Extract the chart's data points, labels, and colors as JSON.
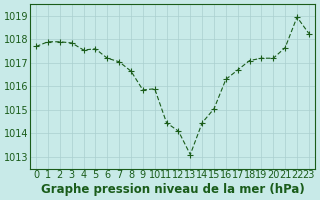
{
  "x": [
    0,
    1,
    2,
    3,
    4,
    5,
    6,
    7,
    8,
    9,
    10,
    11,
    12,
    13,
    14,
    15,
    16,
    17,
    18,
    19,
    20,
    21,
    22,
    23
  ],
  "y": [
    1017.7,
    1017.9,
    1017.9,
    1017.85,
    1017.55,
    1017.6,
    1017.2,
    1017.05,
    1016.65,
    1015.85,
    1015.9,
    1014.45,
    1014.1,
    1013.1,
    1014.45,
    1015.05,
    1016.3,
    1016.7,
    1017.1,
    1017.2,
    1017.2,
    1017.65,
    1018.95,
    1018.25
  ],
  "line_color": "#1a5c1a",
  "marker": "+",
  "marker_size": 5,
  "bg_color": "#c8eae8",
  "grid_color": "#aacfcf",
  "tick_color": "#1a5c1a",
  "label_color": "#1a5c1a",
  "xlabel": "Graphe pression niveau de la mer (hPa)",
  "ylim": [
    1012.5,
    1019.5
  ],
  "yticks": [
    1013,
    1014,
    1015,
    1016,
    1017,
    1018,
    1019
  ],
  "xticks": [
    0,
    1,
    2,
    3,
    4,
    5,
    6,
    7,
    8,
    9,
    10,
    11,
    12,
    13,
    14,
    15,
    16,
    17,
    18,
    19,
    20,
    21,
    22,
    23
  ],
  "xlabel_fontsize": 8.5,
  "tick_fontsize": 7
}
